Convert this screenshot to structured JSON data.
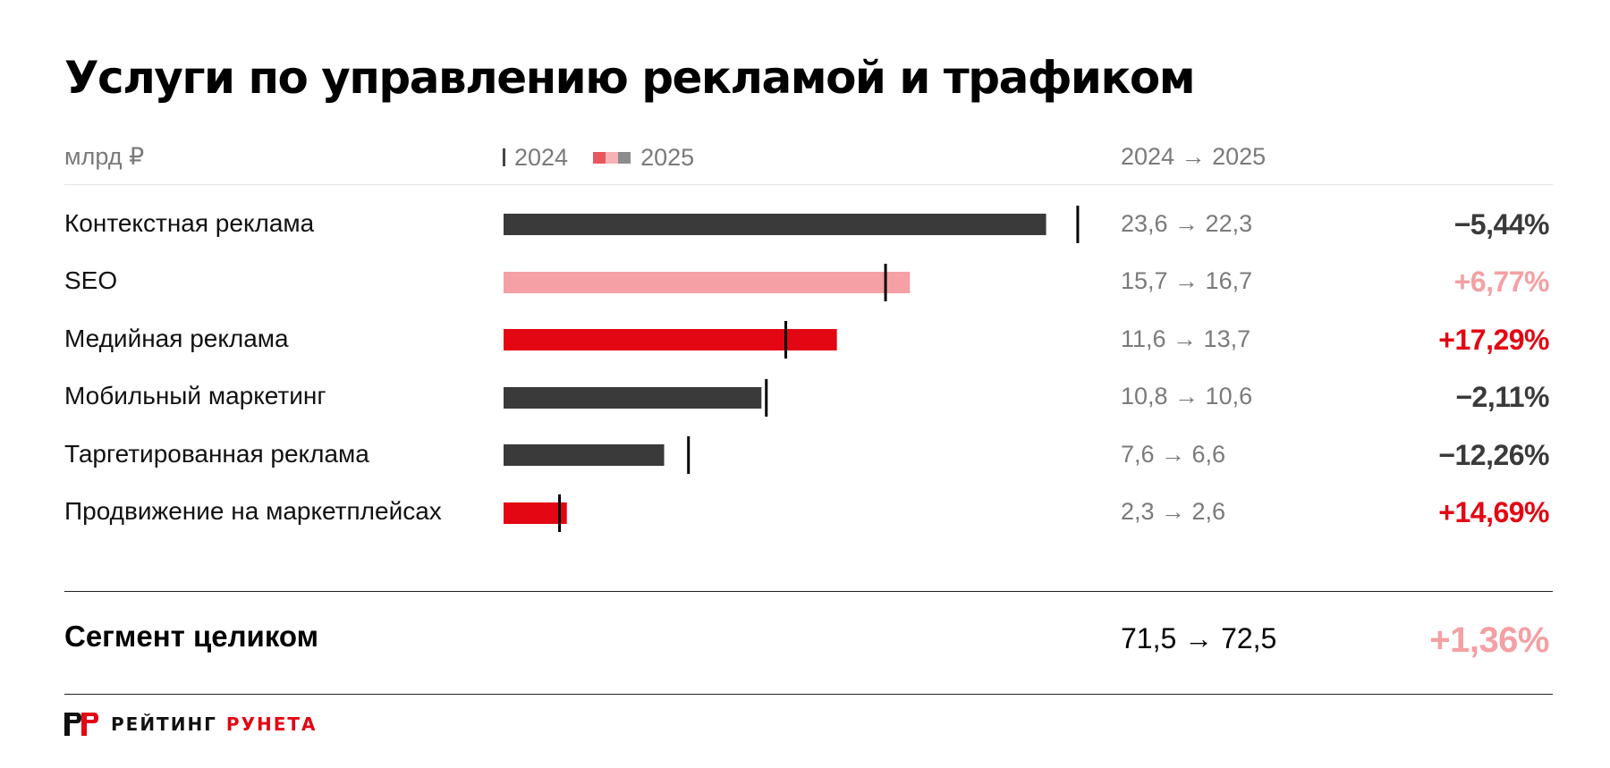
{
  "title": "Услуги по управлению рекламой и трафиком",
  "header": {
    "units": "млрд ₽",
    "legend_2024": "2024",
    "legend_2025": "2025",
    "change": "2024 → 2025"
  },
  "colors": {
    "decline": "#3a3a3a",
    "moderate_growth": "#f4a0a4",
    "strong_growth": "#e30613",
    "marker": "#000000",
    "muted_text": "#7a7a7a"
  },
  "chart_data": {
    "type": "bar",
    "title": "Услуги по управлению рекламой и трафиком",
    "unit": "млрд ₽",
    "xlim": [
      0,
      25
    ],
    "grid": false,
    "categories": [
      "Контекстная реклама",
      "SEO",
      "Медийная реклама",
      "Мобильный маркетинг",
      "Таргетированная реклама",
      "Продвижение на маркетплейсах"
    ],
    "series": [
      {
        "name": "2024",
        "values": [
          23.6,
          15.7,
          11.6,
          10.8,
          7.6,
          2.3
        ]
      },
      {
        "name": "2025",
        "values": [
          22.3,
          16.7,
          13.7,
          10.6,
          6.6,
          2.6
        ]
      }
    ],
    "value_labels": [
      "23,6 → 22,3",
      "15,7 → 16,7",
      "11,6 → 13,7",
      "10,8 → 10,6",
      "7,6 → 6,6",
      "2,3 → 2,6"
    ],
    "change_labels": [
      "−5,44%",
      "+6,77%",
      "+17,29%",
      "−2,11%",
      "−12,26%",
      "+14,69%"
    ],
    "change_pct": [
      -5.44,
      6.77,
      17.29,
      -2.11,
      -12.26,
      14.69
    ],
    "bar_color_class": [
      "decline",
      "moderate_growth",
      "strong_growth",
      "decline",
      "decline",
      "strong_growth"
    ]
  },
  "total": {
    "label": "Сегмент целиком",
    "values": "71,5 → 72,5",
    "change": "+1,36%",
    "color_class": "moderate_growth"
  },
  "brand": {
    "word1": "РЕЙТИНГ",
    "word2": "РУНЕТА"
  }
}
